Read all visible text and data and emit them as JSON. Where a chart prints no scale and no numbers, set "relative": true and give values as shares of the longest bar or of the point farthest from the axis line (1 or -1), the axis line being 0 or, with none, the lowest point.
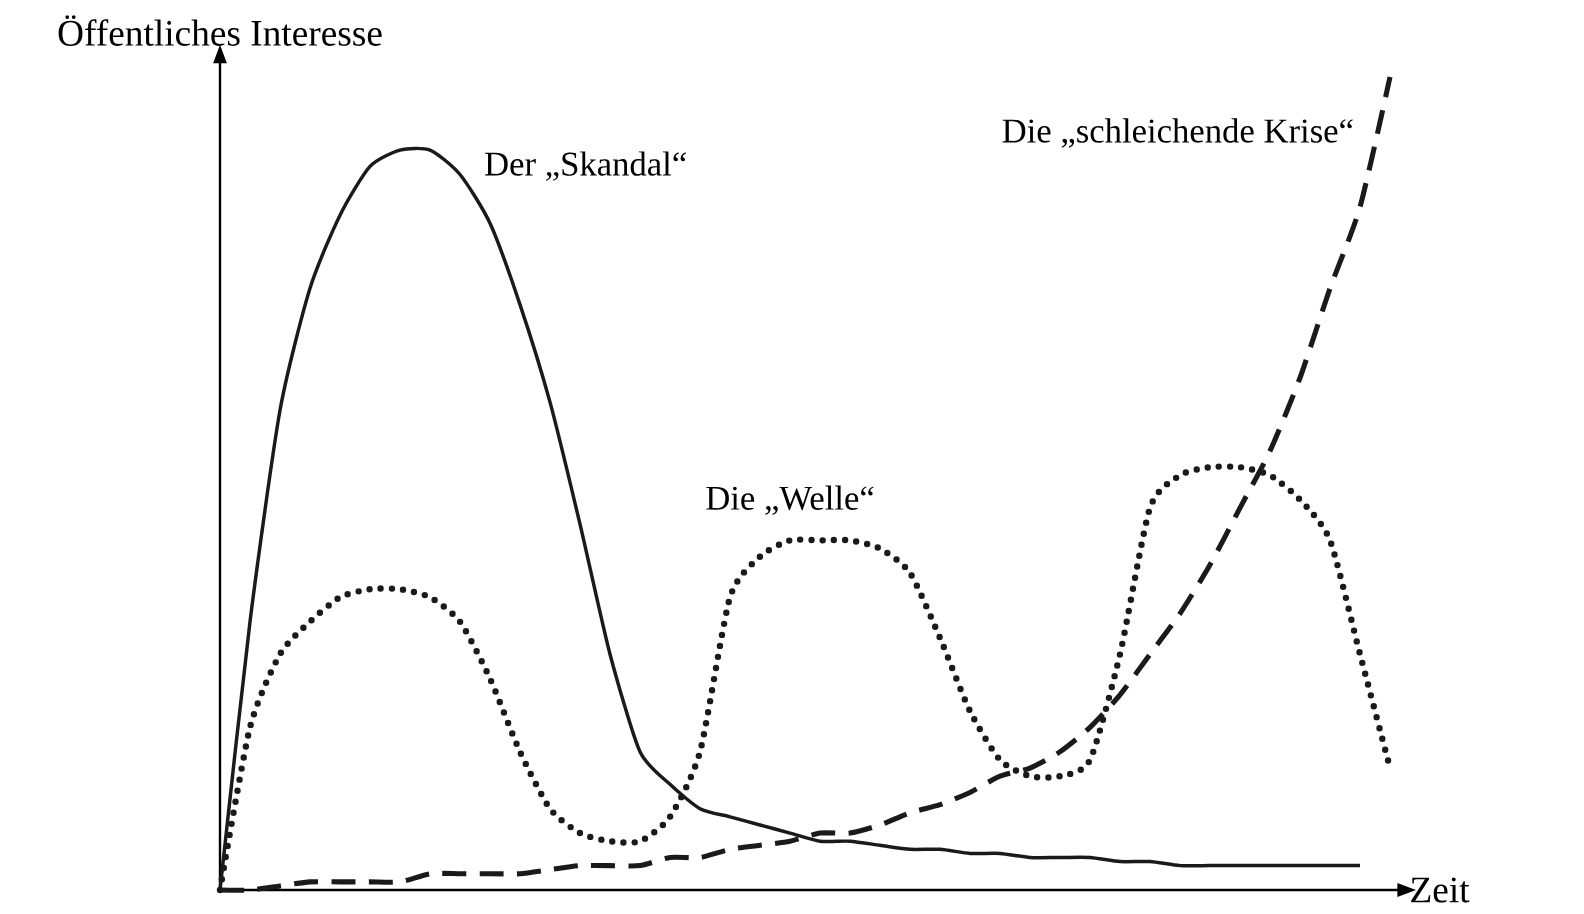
{
  "chart_data": {
    "type": "line",
    "relative": true,
    "xlabel": "Zeit",
    "ylabel": "Öffentliches Interesse",
    "categories": [
      null,
      null,
      null,
      null,
      null,
      null,
      null,
      null,
      null,
      null,
      null,
      null,
      null,
      null,
      null,
      null,
      null,
      null,
      null,
      null,
      null,
      null,
      null,
      null,
      null,
      null,
      null,
      null,
      null,
      null,
      null,
      null,
      null,
      null,
      null,
      null,
      null,
      null,
      null,
      null
    ],
    "series": [
      {
        "name": "Der „Skandal“",
        "color": "#1a1a1a",
        "line_style": "solid",
        "values": [
          0,
          0.33,
          0.59,
          0.74,
          0.83,
          0.89,
          0.91,
          0.91,
          0.88,
          0.82,
          0.72,
          0.6,
          0.45,
          0.29,
          0.17,
          0.13,
          0.1,
          0.09,
          0.08,
          0.07,
          0.06,
          0.06,
          0.055,
          0.05,
          0.05,
          0.045,
          0.045,
          0.04,
          0.04,
          0.04,
          0.035,
          0.035,
          0.03,
          0.03,
          0.03,
          0.03,
          0.03,
          0.03,
          0.03,
          null
        ]
      },
      {
        "name": "Die „Welle“",
        "color": "#1a1a1a",
        "line_style": "dotted",
        "values": [
          0,
          0.2,
          0.29,
          0.33,
          0.36,
          0.37,
          0.37,
          0.36,
          0.33,
          0.26,
          0.17,
          0.1,
          0.07,
          0.06,
          0.06,
          0.09,
          0.17,
          0.36,
          0.41,
          0.43,
          0.43,
          0.43,
          0.42,
          0.39,
          0.31,
          0.22,
          0.16,
          0.14,
          0.14,
          0.16,
          0.29,
          0.47,
          0.51,
          0.52,
          0.52,
          0.51,
          0.48,
          0.43,
          0.29,
          0.15
        ]
      },
      {
        "name": "Die „schleichende Krise“",
        "color": "#1a1a1a",
        "line_style": "dashed",
        "values": [
          0,
          0,
          0.005,
          0.01,
          0.01,
          0.01,
          0.01,
          0.02,
          0.02,
          0.02,
          0.02,
          0.025,
          0.03,
          0.03,
          0.03,
          0.04,
          0.04,
          0.05,
          0.055,
          0.06,
          0.07,
          0.07,
          0.08,
          0.095,
          0.105,
          0.12,
          0.14,
          0.15,
          0.17,
          0.2,
          0.24,
          0.29,
          0.34,
          0.4,
          0.47,
          0.54,
          0.63,
          0.74,
          0.84,
          1
        ]
      }
    ]
  }
}
